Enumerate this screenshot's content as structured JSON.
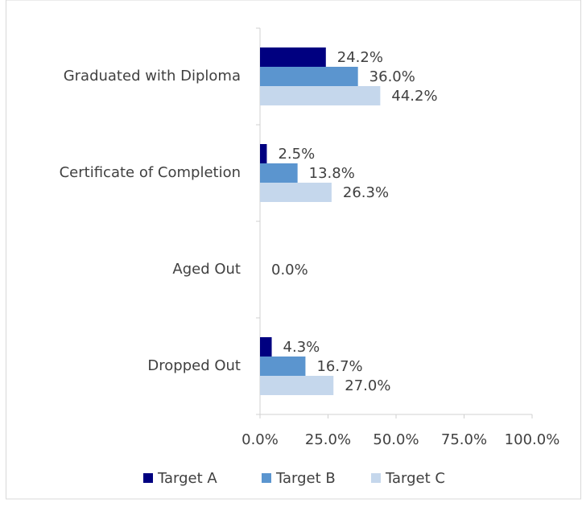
{
  "chart_data": {
    "type": "hbar",
    "categories": [
      "Graduated with Diploma",
      "Certificate of Completion",
      "Aged Out",
      "Dropped Out"
    ],
    "series": [
      {
        "name": "Target A",
        "color": "#000080",
        "values": [
          24.2,
          2.5,
          null,
          4.3
        ],
        "value_labels": [
          "24.2%",
          "2.5%",
          null,
          "4.3%"
        ]
      },
      {
        "name": "Target B",
        "color": "#5b95cf",
        "values": [
          36.0,
          13.8,
          0.0,
          16.7
        ],
        "value_labels": [
          "36.0%",
          "13.8%",
          "0.0%",
          "16.7%"
        ]
      },
      {
        "name": "Target C",
        "color": "#c5d7ec",
        "values": [
          44.2,
          26.3,
          null,
          27.0
        ],
        "value_labels": [
          "44.2%",
          "26.3%",
          null,
          "27.0%"
        ]
      }
    ],
    "xlim": [
      0,
      100
    ],
    "xticks": [
      {
        "value": 0,
        "label": "0.0%"
      },
      {
        "value": 25,
        "label": "25.0%"
      },
      {
        "value": 50,
        "label": "50.0%"
      },
      {
        "value": 75,
        "label": "75.0%"
      },
      {
        "value": 100,
        "label": "100.0%"
      }
    ],
    "legend": "bottom"
  }
}
